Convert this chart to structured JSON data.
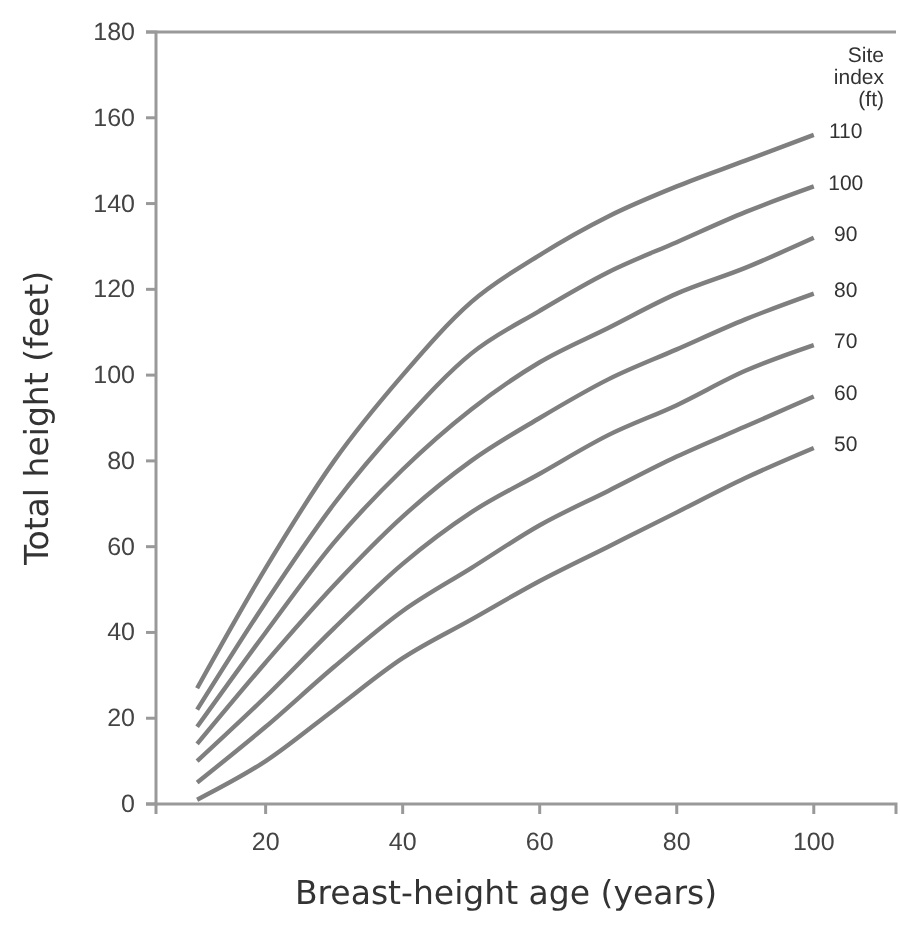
{
  "chart_data": {
    "type": "line",
    "xlabel": "Breast-height age (years)",
    "ylabel": "Total height (feet)",
    "legend_title": "Site\nindex\n(ft)",
    "x": [
      10,
      20,
      30,
      40,
      50,
      60,
      70,
      80,
      90,
      100
    ],
    "series": [
      {
        "name": "110",
        "color": "#7f7f7f",
        "values": [
          27,
          55,
          80,
          100,
          117,
          128,
          137,
          144,
          150,
          156
        ]
      },
      {
        "name": "100",
        "color": "#7f7f7f",
        "values": [
          22,
          47,
          70,
          89,
          105,
          115,
          124,
          131,
          138,
          144
        ]
      },
      {
        "name": "90",
        "color": "#7f7f7f",
        "values": [
          18,
          40,
          61,
          78,
          92,
          103,
          111,
          119,
          125,
          132
        ]
      },
      {
        "name": "80",
        "color": "#7f7f7f",
        "values": [
          14,
          33,
          51,
          67,
          80,
          90,
          99,
          106,
          113,
          119
        ]
      },
      {
        "name": "70",
        "color": "#7f7f7f",
        "values": [
          10,
          25,
          41,
          56,
          68,
          77,
          86,
          93,
          101,
          107
        ]
      },
      {
        "name": "60",
        "color": "#7f7f7f",
        "values": [
          5,
          18,
          32,
          45,
          55,
          65,
          73,
          81,
          88,
          95
        ]
      },
      {
        "name": "50",
        "color": "#7f7f7f",
        "values": [
          1,
          10,
          22,
          34,
          43,
          52,
          60,
          68,
          76,
          83
        ]
      }
    ],
    "xlim": [
      4,
      112
    ],
    "xticks": [
      20,
      40,
      60,
      80,
      100
    ],
    "ylim": [
      0,
      180
    ],
    "yticks": [
      0,
      20,
      40,
      60,
      80,
      100,
      120,
      140,
      160,
      180
    ],
    "grid": false,
    "legend": "right",
    "marker": "none",
    "line_style": "solid"
  }
}
